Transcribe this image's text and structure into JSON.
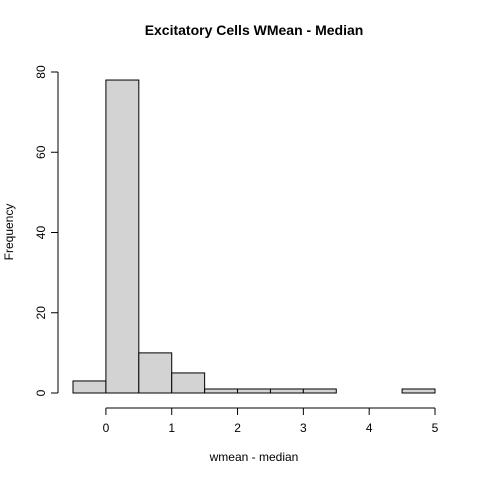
{
  "chart_data": {
    "type": "bar",
    "title": "Excitatory Cells WMean - Median",
    "xlabel": "wmean - median",
    "ylabel": "Frequency",
    "bins": [
      {
        "start": -0.5,
        "end": 0.0,
        "count": 3
      },
      {
        "start": 0.0,
        "end": 0.5,
        "count": 78
      },
      {
        "start": 0.5,
        "end": 1.0,
        "count": 10
      },
      {
        "start": 1.0,
        "end": 1.5,
        "count": 5
      },
      {
        "start": 1.5,
        "end": 2.0,
        "count": 1
      },
      {
        "start": 2.0,
        "end": 2.5,
        "count": 1
      },
      {
        "start": 2.5,
        "end": 3.0,
        "count": 1
      },
      {
        "start": 3.0,
        "end": 3.5,
        "count": 1
      },
      {
        "start": 3.5,
        "end": 4.0,
        "count": 0
      },
      {
        "start": 4.0,
        "end": 4.5,
        "count": 0
      },
      {
        "start": 4.5,
        "end": 5.0,
        "count": 1
      }
    ],
    "x_ticks": [
      0,
      1,
      2,
      3,
      4,
      5
    ],
    "y_ticks": [
      0,
      20,
      40,
      60,
      80
    ],
    "xlim": [
      -0.5,
      5.0
    ],
    "ylim": [
      0,
      80
    ],
    "bar_fill": "#d3d3d3",
    "bar_stroke": "#000000",
    "grid": false,
    "legend": "none"
  }
}
